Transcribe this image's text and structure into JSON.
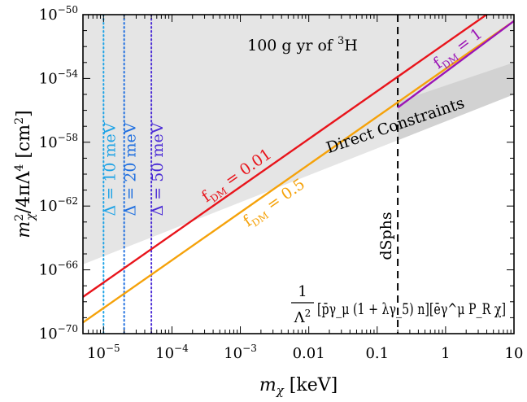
{
  "chart_data": {
    "type": "line",
    "xlabel": "m_χ [keV]",
    "ylabel": "m_χ^2/4πΛ^4 [cm^2]",
    "xscale": "log",
    "yscale": "log",
    "xlim": [
      5e-06,
      10
    ],
    "ylim": [
      1e-70,
      1e-50
    ],
    "x_ticks": [
      {
        "value": 1e-05,
        "label": "10",
        "exp": "−5"
      },
      {
        "value": 0.0001,
        "label": "10",
        "exp": "−4"
      },
      {
        "value": 0.001,
        "label": "10",
        "exp": "−3"
      },
      {
        "value": 0.01,
        "label": "0.01",
        "exp": ""
      },
      {
        "value": 0.1,
        "label": "0.1",
        "exp": ""
      },
      {
        "value": 1,
        "label": "1",
        "exp": ""
      },
      {
        "value": 10,
        "label": "10",
        "exp": ""
      }
    ],
    "y_ticks": [
      {
        "value": 1e-70,
        "label": "10",
        "exp": "−70"
      },
      {
        "value": 1e-66,
        "label": "10",
        "exp": "−66"
      },
      {
        "value": 1e-62,
        "label": "10",
        "exp": "−62"
      },
      {
        "value": 1e-58,
        "label": "10",
        "exp": "−58"
      },
      {
        "value": 1e-54,
        "label": "10",
        "exp": "−54"
      },
      {
        "value": 1e-50,
        "label": "10",
        "exp": "−50"
      }
    ],
    "series": [
      {
        "label_main": "f",
        "label_sub": "DM",
        "label_rest": " = 0.01",
        "color": "#e8141b",
        "x": [
          5e-06,
          10
        ],
        "y": [
          2e-68,
          1.6e-49
        ]
      },
      {
        "label_main": "f",
        "label_sub": "DM",
        "label_rest": " = 0.5",
        "color": "#f5a20a",
        "x": [
          5e-06,
          10
        ],
        "y": [
          5e-70,
          4e-51
        ]
      },
      {
        "label_main": "f",
        "label_sub": "DM",
        "label_rest": " = 1",
        "color": "#9b14b6",
        "x": [
          0.2,
          10
        ],
        "y": [
          1.5e-56,
          4e-51
        ]
      }
    ],
    "regions": [
      {
        "label_main": "100 g yr of ",
        "label_sup": "3",
        "label_rest": "H",
        "color": "#e5e5e5",
        "boundary_x": [
          5e-06,
          10
        ],
        "boundary_y": [
          2.2e-66,
          1e-55
        ]
      },
      {
        "label": "Direct Constraints",
        "color": "#d2d2d2",
        "boundary_x": [
          0.2,
          10
        ],
        "boundary_y": [
          3.5e-56,
          1e-53
        ]
      }
    ],
    "vertical_lines": [
      {
        "label": "Δ = 10 meV",
        "x": 1e-05,
        "color": "#1ea3e6",
        "style": "dotted"
      },
      {
        "label": "Δ = 20 meV",
        "x": 2e-05,
        "color": "#1f6fe0",
        "style": "dotted"
      },
      {
        "label": "Δ = 50 meV",
        "x": 5e-05,
        "color": "#4a2bd6",
        "style": "dotted"
      },
      {
        "label": "dSphs",
        "x": 0.2,
        "color": "#000000",
        "style": "dashed"
      }
    ],
    "formula": "[p̄γ_μ (1 + λγ_5) n][ēγ^μ P_R χ]",
    "formula_prefix": "1/Λ^2",
    "formula_num": "1",
    "formula_den": "Λ",
    "formula_den_sup": "2"
  }
}
